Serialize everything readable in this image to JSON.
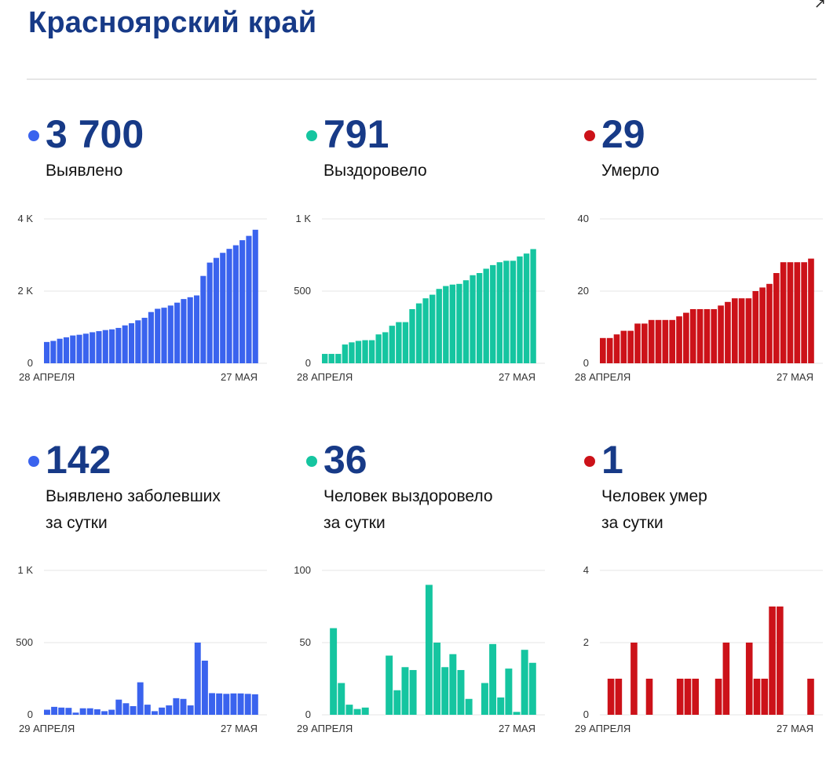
{
  "title": "Красноярский край",
  "colors": {
    "blue": "#3a63ee",
    "teal": "#15c5a0",
    "red": "#cc1219",
    "title": "#173a87"
  },
  "panels": [
    {
      "value": "3 700",
      "label_lines": [
        "Выявлено"
      ],
      "color": "blue",
      "chart_data": {
        "type": "bar",
        "ylim": [
          0,
          4000
        ],
        "ticks": [
          {
            "v": 0,
            "t": "0"
          },
          {
            "v": 2000,
            "t": "2 K"
          },
          {
            "v": 4000,
            "t": "4 K"
          }
        ],
        "x_start": "28 АПРЕЛЯ",
        "x_end": "27 МАЯ",
        "values": [
          590,
          620,
          680,
          720,
          770,
          790,
          820,
          860,
          890,
          920,
          940,
          980,
          1050,
          1110,
          1190,
          1260,
          1420,
          1510,
          1540,
          1600,
          1680,
          1780,
          1830,
          1880,
          2420,
          2790,
          2920,
          3060,
          3170,
          3270,
          3410,
          3530,
          3700
        ]
      }
    },
    {
      "value": "791",
      "label_lines": [
        "Выздоровело"
      ],
      "color": "teal",
      "chart_data": {
        "type": "bar",
        "ylim": [
          0,
          1000
        ],
        "ticks": [
          {
            "v": 0,
            "t": "0"
          },
          {
            "v": 500,
            "t": "500"
          },
          {
            "v": 1000,
            "t": "1 K"
          }
        ],
        "x_start": "28 АПРЕЛЯ",
        "x_end": "27 МАЯ",
        "values": [
          65,
          65,
          65,
          130,
          145,
          155,
          160,
          160,
          200,
          215,
          260,
          285,
          285,
          375,
          415,
          450,
          475,
          515,
          535,
          545,
          550,
          575,
          610,
          625,
          655,
          680,
          700,
          710,
          710,
          740,
          760,
          791
        ]
      }
    },
    {
      "value": "29",
      "label_lines": [
        "Умерло"
      ],
      "color": "red",
      "chart_data": {
        "type": "bar",
        "ylim": [
          0,
          40
        ],
        "ticks": [
          {
            "v": 0,
            "t": "0"
          },
          {
            "v": 20,
            "t": "20"
          },
          {
            "v": 40,
            "t": "40"
          }
        ],
        "x_start": "28 АПРЕЛЯ",
        "x_end": "27 МАЯ",
        "values": [
          7,
          7,
          8,
          9,
          9,
          11,
          11,
          12,
          12,
          12,
          12,
          13,
          14,
          15,
          15,
          15,
          15,
          16,
          17,
          18,
          18,
          18,
          20,
          21,
          22,
          25,
          28,
          28,
          28,
          28,
          29
        ]
      }
    },
    {
      "value": "142",
      "label_lines": [
        "Выявлено заболевших",
        "за сутки"
      ],
      "color": "blue",
      "chart_data": {
        "type": "bar",
        "ylim": [
          0,
          1000
        ],
        "ticks": [
          {
            "v": 0,
            "t": "0"
          },
          {
            "v": 500,
            "t": "500"
          },
          {
            "v": 1000,
            "t": "1 K"
          }
        ],
        "x_start": "29 АПРЕЛЯ",
        "x_end": "27 МАЯ",
        "values": [
          35,
          55,
          50,
          48,
          15,
          45,
          45,
          38,
          25,
          35,
          105,
          80,
          60,
          225,
          70,
          25,
          50,
          65,
          115,
          110,
          65,
          500,
          375,
          150,
          148,
          145,
          148,
          148,
          145,
          142
        ]
      }
    },
    {
      "value": "36",
      "label_lines": [
        "Человек выздоровело",
        "за сутки"
      ],
      "color": "teal",
      "chart_data": {
        "type": "bar",
        "ylim": [
          0,
          100
        ],
        "ticks": [
          {
            "v": 0,
            "t": "0"
          },
          {
            "v": 50,
            "t": "50"
          },
          {
            "v": 100,
            "t": "100"
          }
        ],
        "x_start": "29 АПРЕЛЯ",
        "x_end": "27 МАЯ",
        "values": [
          0,
          60,
          22,
          7,
          4,
          5,
          0,
          0,
          41,
          17,
          33,
          31,
          0,
          90,
          50,
          33,
          42,
          31,
          11,
          0,
          22,
          49,
          12,
          32,
          2,
          45,
          36
        ]
      }
    },
    {
      "value": "1",
      "label_lines": [
        "Человек умер",
        "за сутки"
      ],
      "color": "red",
      "chart_data": {
        "type": "bar",
        "ylim": [
          0,
          4
        ],
        "ticks": [
          {
            "v": 0,
            "t": "0"
          },
          {
            "v": 2,
            "t": "2"
          },
          {
            "v": 4,
            "t": "4"
          }
        ],
        "x_start": "29 АПРЕЛЯ",
        "x_end": "27 МАЯ",
        "values": [
          0,
          1,
          1,
          0,
          2,
          0,
          1,
          0,
          0,
          0,
          1,
          1,
          1,
          0,
          0,
          1,
          2,
          0,
          0,
          2,
          1,
          1,
          3,
          3,
          0,
          0,
          0,
          1
        ]
      }
    }
  ]
}
